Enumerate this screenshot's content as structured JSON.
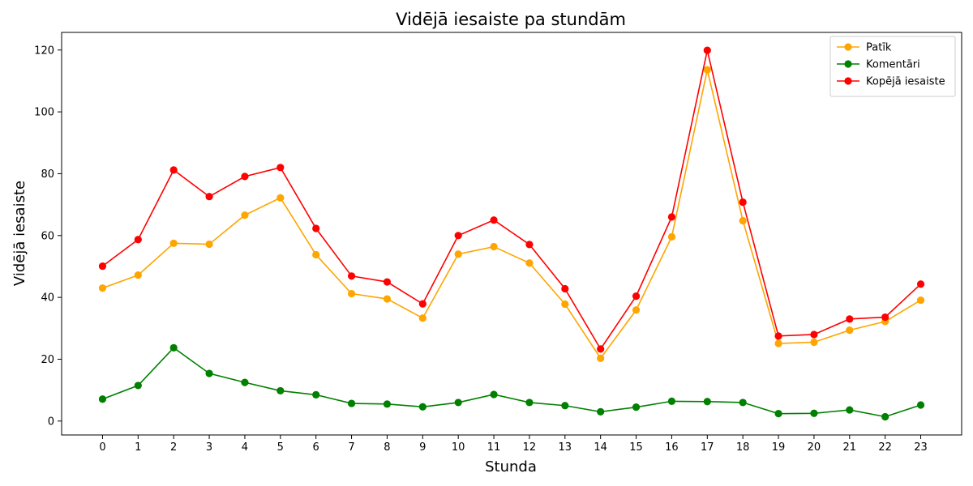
{
  "chart_data": {
    "type": "line",
    "title": "Vidējā iesaiste pa stundām",
    "xlabel": "Stunda",
    "ylabel": "Vidējā iesaiste",
    "x": [
      0,
      1,
      2,
      3,
      4,
      5,
      6,
      7,
      8,
      9,
      10,
      11,
      12,
      13,
      14,
      15,
      16,
      17,
      18,
      19,
      20,
      21,
      22,
      23
    ],
    "xlim": [
      -1.15,
      24.15
    ],
    "ylim": [
      -4.5,
      125.7
    ],
    "yticks": [
      0,
      20,
      40,
      60,
      80,
      100,
      120
    ],
    "grid": false,
    "legend_position": "top-right",
    "series": [
      {
        "name": "Patīk",
        "color": "#ffa500",
        "values": [
          43.0,
          47.2,
          57.5,
          57.2,
          66.6,
          72.2,
          53.8,
          41.2,
          39.5,
          33.3,
          54.0,
          56.4,
          51.1,
          37.8,
          20.3,
          35.9,
          59.6,
          113.6,
          64.8,
          25.1,
          25.5,
          29.4,
          32.2,
          39.1
        ]
      },
      {
        "name": "Komentāri",
        "color": "#008000",
        "values": [
          7.1,
          11.5,
          23.7,
          15.4,
          12.5,
          9.8,
          8.5,
          5.7,
          5.5,
          4.6,
          6.0,
          8.6,
          6.0,
          5.0,
          3.0,
          4.5,
          6.4,
          6.3,
          6.0,
          2.4,
          2.5,
          3.6,
          1.4,
          5.2
        ]
      },
      {
        "name": "Kopējā iesaiste",
        "color": "#ff0000",
        "values": [
          50.1,
          58.7,
          81.2,
          72.6,
          79.1,
          82.0,
          62.3,
          46.9,
          45.0,
          37.9,
          60.0,
          65.0,
          57.1,
          42.8,
          23.3,
          40.4,
          66.0,
          119.9,
          70.8,
          27.5,
          28.0,
          33.0,
          33.6,
          44.3
        ]
      }
    ]
  }
}
